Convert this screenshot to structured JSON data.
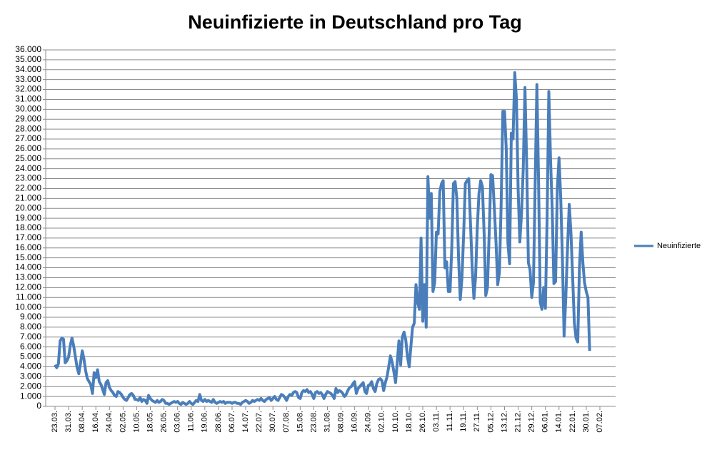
{
  "chart_data": {
    "type": "line",
    "title": "Neuinfizierte in Deutschland pro Tag",
    "categories": [
      "23.03.",
      null,
      null,
      null,
      null,
      null,
      null,
      null,
      "31.03.",
      null,
      null,
      null,
      null,
      null,
      null,
      null,
      "08.04.",
      null,
      null,
      null,
      null,
      null,
      null,
      null,
      "16.04.",
      null,
      null,
      null,
      null,
      null,
      null,
      null,
      "24.04.",
      null,
      null,
      null,
      null,
      null,
      null,
      null,
      "02.05.",
      null,
      null,
      null,
      null,
      null,
      null,
      null,
      "10.05.",
      null,
      null,
      null,
      null,
      null,
      null,
      null,
      "18.05.",
      null,
      null,
      null,
      null,
      null,
      null,
      null,
      "26.05.",
      null,
      null,
      null,
      null,
      null,
      null,
      null,
      "03.06.",
      null,
      null,
      null,
      null,
      null,
      null,
      null,
      "11.06.",
      null,
      null,
      null,
      null,
      null,
      null,
      null,
      "19.06.",
      null,
      null,
      null,
      null,
      null,
      null,
      null,
      "28.06.",
      null,
      null,
      null,
      null,
      null,
      null,
      null,
      "06.07.",
      null,
      null,
      null,
      null,
      null,
      null,
      null,
      "14.07.",
      null,
      null,
      null,
      null,
      null,
      null,
      null,
      "22.07.",
      null,
      null,
      null,
      null,
      null,
      null,
      null,
      "30.07.",
      null,
      null,
      null,
      null,
      null,
      null,
      null,
      "07.08.",
      null,
      null,
      null,
      null,
      null,
      null,
      null,
      "15.08.",
      null,
      null,
      null,
      null,
      null,
      null,
      null,
      "23.08.",
      null,
      null,
      null,
      null,
      null,
      null,
      null,
      "31.08.",
      null,
      null,
      null,
      null,
      null,
      null,
      null,
      "08.09.",
      null,
      null,
      null,
      null,
      null,
      null,
      null,
      "16.09.",
      null,
      null,
      null,
      null,
      null,
      null,
      null,
      "24.09.",
      null,
      null,
      null,
      null,
      null,
      null,
      null,
      "02.10.",
      null,
      null,
      null,
      null,
      null,
      null,
      null,
      "10.10.",
      null,
      null,
      null,
      null,
      null,
      null,
      null,
      "18.10.",
      null,
      null,
      null,
      null,
      null,
      null,
      null,
      "26.10.",
      null,
      null,
      null,
      null,
      null,
      null,
      null,
      "03.11.",
      null,
      null,
      null,
      null,
      null,
      null,
      null,
      "11.11.",
      null,
      null,
      null,
      null,
      null,
      null,
      null,
      "19.11.",
      null,
      null,
      null,
      null,
      null,
      null,
      null,
      "27.11.",
      null,
      null,
      null,
      null,
      null,
      null,
      null,
      "05.12.",
      null,
      null,
      null,
      null,
      null,
      null,
      null,
      "13.12.",
      null,
      null,
      null,
      null,
      null,
      null,
      null,
      "21.12.",
      null,
      null,
      null,
      null,
      null,
      null,
      null,
      "29.12.",
      null,
      null,
      null,
      null,
      null,
      null,
      null,
      "06.01.",
      null,
      null,
      null,
      null,
      null,
      null,
      null,
      "14.01.",
      null,
      null,
      null,
      null,
      null,
      null,
      null,
      "22.01.",
      null,
      null,
      null,
      null,
      null,
      null,
      null,
      "30.01.",
      null,
      null,
      null,
      null,
      null,
      null,
      null,
      "07.02."
    ],
    "series": [
      {
        "name": "Neuinfizierte",
        "color": "#4a7ebb",
        "values": [
          4200,
          3900,
          4300,
          6600,
          6900,
          6800,
          4400,
          4600,
          5000,
          6200,
          6900,
          6100,
          5000,
          3900,
          3300,
          4400,
          5600,
          4800,
          3600,
          2800,
          2500,
          2200,
          1300,
          3400,
          2900,
          3700,
          2500,
          2200,
          1700,
          1200,
          2400,
          2600,
          1900,
          1600,
          1400,
          1100,
          1000,
          1500,
          1400,
          1200,
          900,
          700,
          600,
          900,
          1200,
          1300,
          1100,
          700,
          700,
          600,
          900,
          500,
          700,
          600,
          300,
          1100,
          800,
          600,
          500,
          400,
          600,
          400,
          500,
          700,
          600,
          300,
          300,
          200,
          300,
          400,
          500,
          400,
          500,
          300,
          200,
          400,
          300,
          200,
          300,
          500,
          300,
          200,
          400,
          600,
          500,
          1200,
          600,
          500,
          700,
          500,
          600,
          500,
          400,
          700,
          400,
          300,
          400,
          500,
          400,
          500,
          300,
          400,
          400,
          400,
          300,
          400,
          400,
          300,
          300,
          200,
          400,
          500,
          600,
          500,
          300,
          400,
          600,
          500,
          600,
          700,
          600,
          800,
          600,
          500,
          700,
          800,
          900,
          600,
          800,
          1000,
          700,
          600,
          900,
          1200,
          1100,
          900,
          600,
          1000,
          1200,
          1100,
          1400,
          1500,
          1400,
          900,
          800,
          1400,
          1600,
          1500,
          1700,
          1400,
          1500,
          1200,
          800,
          1400,
          1500,
          1300,
          1400,
          1200,
          800,
          1200,
          1500,
          1400,
          1300,
          1100,
          800,
          1800,
          1400,
          1600,
          1500,
          1300,
          1000,
          1200,
          1600,
          1900,
          2000,
          2300,
          2500,
          1300,
          1800,
          2000,
          2200,
          2400,
          1500,
          1300,
          2100,
          2200,
          2500,
          1800,
          1500,
          2300,
          2700,
          2800,
          2600,
          1600,
          2400,
          3000,
          4000,
          5100,
          4500,
          3500,
          2400,
          4500,
          6600,
          4200,
          7000,
          7500,
          6700,
          5000,
          4000,
          6000,
          8000,
          8400,
          12300,
          10500,
          9800,
          17000,
          8600,
          12300,
          8000,
          23200,
          19000,
          21500,
          11600,
          12500,
          17600,
          17400,
          21700,
          22500,
          22800,
          14000,
          14600,
          11600,
          11600,
          16000,
          22500,
          22700,
          21000,
          15000,
          10800,
          13000,
          17500,
          22500,
          22800,
          23000,
          18500,
          14000,
          10900,
          13000,
          18000,
          21500,
          22800,
          22200,
          17500,
          11200,
          12000,
          17500,
          23400,
          23300,
          20000,
          16500,
          12300,
          13500,
          20200,
          29800,
          29800,
          26000,
          16500,
          14400,
          27600,
          27000,
          33700,
          31000,
          22000,
          16600,
          19500,
          24000,
          32200,
          24500,
          14500,
          13800,
          11000,
          12500,
          22500,
          32500,
          22500,
          10500,
          9800,
          12000,
          9900,
          19000,
          31800,
          25000,
          20000,
          12400,
          12600,
          22000,
          25100,
          21000,
          15000,
          7100,
          11000,
          16000,
          20400,
          17500,
          13000,
          8500,
          6900,
          6500,
          14000,
          17600,
          14500,
          12500,
          11600,
          11000,
          5600,
          null,
          null,
          null,
          null,
          null,
          null
        ]
      }
    ],
    "ylim": [
      0,
      36000
    ],
    "yticks": [
      0,
      {
        "value": 1000,
        "label": "1.000"
      },
      {
        "value": 2000,
        "label": "2.000"
      },
      {
        "value": 3000,
        "label": "3.000"
      },
      {
        "value": 4000,
        "label": "4.000"
      },
      {
        "value": 5000,
        "label": "5.000"
      },
      {
        "value": 6000,
        "label": "6.000"
      },
      {
        "value": 7000,
        "label": "7.000"
      },
      {
        "value": 8000,
        "label": "8.000"
      },
      {
        "value": 9000,
        "label": "9.000"
      },
      {
        "value": 10000,
        "label": "10.000"
      },
      {
        "value": 11000,
        "label": "11.000"
      },
      {
        "value": 12000,
        "label": "12.000"
      },
      {
        "value": 13000,
        "label": "13.000"
      },
      {
        "value": 14000,
        "label": "14.000"
      },
      {
        "value": 15000,
        "label": "15.000"
      },
      {
        "value": 16000,
        "label": "16.000"
      },
      {
        "value": 17000,
        "label": "17.000"
      },
      {
        "value": 18000,
        "label": "18.000"
      },
      {
        "value": 19000,
        "label": "19.000"
      },
      {
        "value": 20000,
        "label": "20.000"
      },
      {
        "value": 21000,
        "label": "21.000"
      },
      {
        "value": 22000,
        "label": "22.000"
      },
      {
        "value": 23000,
        "label": "23.000"
      },
      {
        "value": 24000,
        "label": "24.000"
      },
      {
        "value": 25000,
        "label": "25.000"
      },
      {
        "value": 26000,
        "label": "26.000"
      },
      {
        "value": 27000,
        "label": "27.000"
      },
      {
        "value": 28000,
        "label": "28.000"
      },
      {
        "value": 29000,
        "label": "29.000"
      },
      {
        "value": 30000,
        "label": "30.000"
      },
      {
        "value": 31000,
        "label": "31.000"
      },
      {
        "value": 32000,
        "label": "32.000"
      },
      {
        "value": 33000,
        "label": "33.000"
      },
      {
        "value": 34000,
        "label": "34.000"
      },
      {
        "value": 35000,
        "label": "35.000"
      },
      {
        "value": 36000,
        "label": "36.000"
      }
    ],
    "grid": true,
    "legend": "right"
  }
}
